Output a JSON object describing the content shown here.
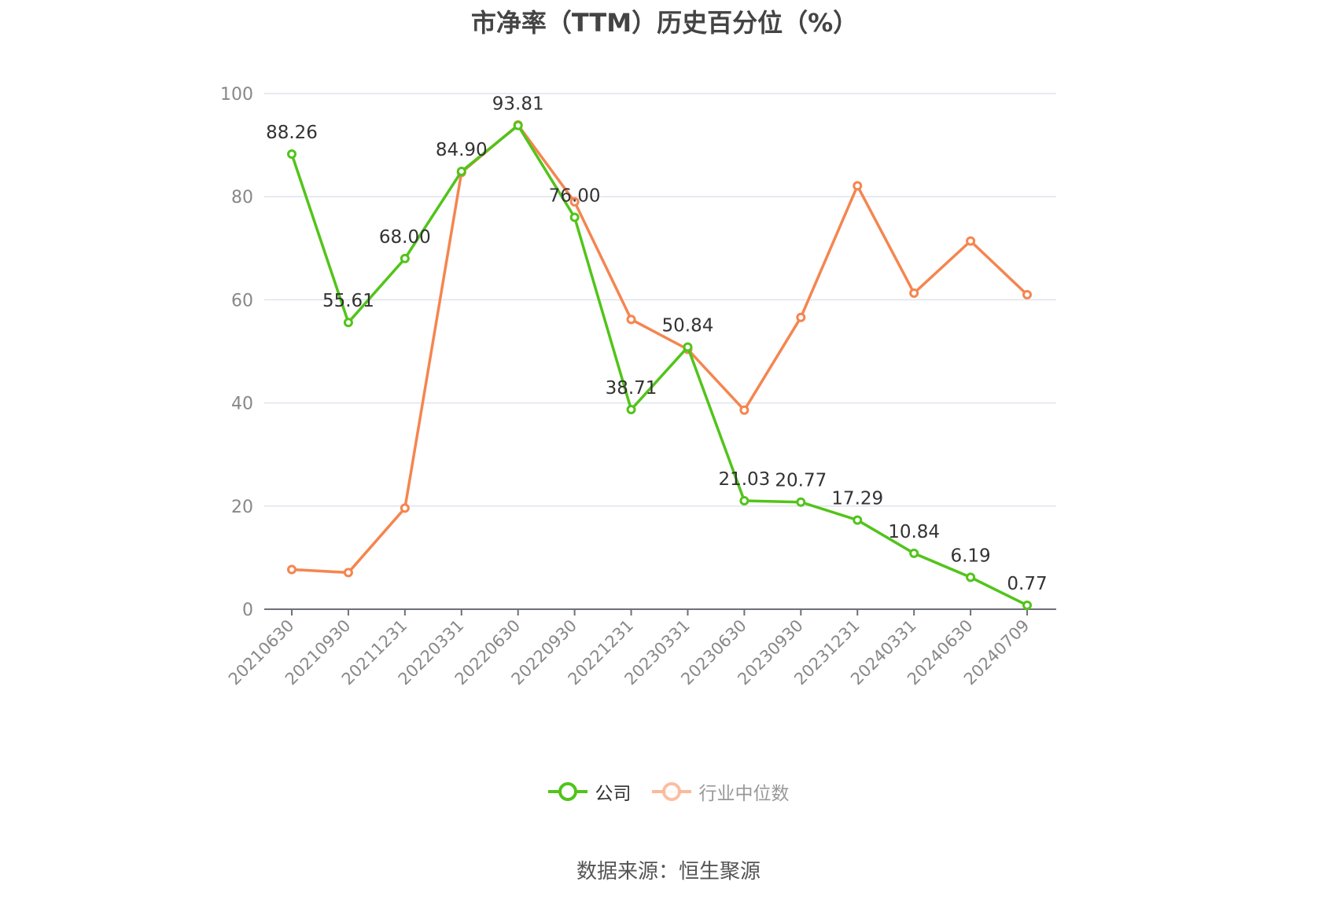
{
  "chart_data": {
    "type": "line",
    "title": "市净率（TTM）历史百分位（%）",
    "categories": [
      "20210630",
      "20210930",
      "20211231",
      "20220331",
      "20220630",
      "20220930",
      "20221231",
      "20230331",
      "20230630",
      "20230930",
      "20231231",
      "20240331",
      "20240630",
      "20240709"
    ],
    "series": [
      {
        "name": "公司",
        "color": "#52c41a",
        "values": [
          88.26,
          55.61,
          68.0,
          84.9,
          93.81,
          76.0,
          38.71,
          50.84,
          21.03,
          20.77,
          17.29,
          10.84,
          6.19,
          0.77
        ],
        "labels": [
          "88.26",
          "55.61",
          "68.00",
          "84.90",
          "93.81",
          "76.00",
          "38.71",
          "50.84",
          "21.03",
          "20.77",
          "17.29",
          "10.84",
          "6.19",
          "0.77"
        ]
      },
      {
        "name": "行业中位数",
        "color": "#f5854f",
        "values": [
          7.7,
          7.1,
          19.6,
          84.7,
          93.9,
          79.0,
          56.2,
          50.4,
          38.6,
          56.6,
          82.1,
          61.3,
          71.4,
          61.0
        ]
      }
    ],
    "ylim": [
      0,
      100
    ],
    "yticks": [
      0,
      20,
      40,
      60,
      80,
      100
    ],
    "grid": true,
    "legend_position": "bottom",
    "xlabel": "",
    "ylabel": ""
  },
  "source": "数据来源：恒生聚源"
}
